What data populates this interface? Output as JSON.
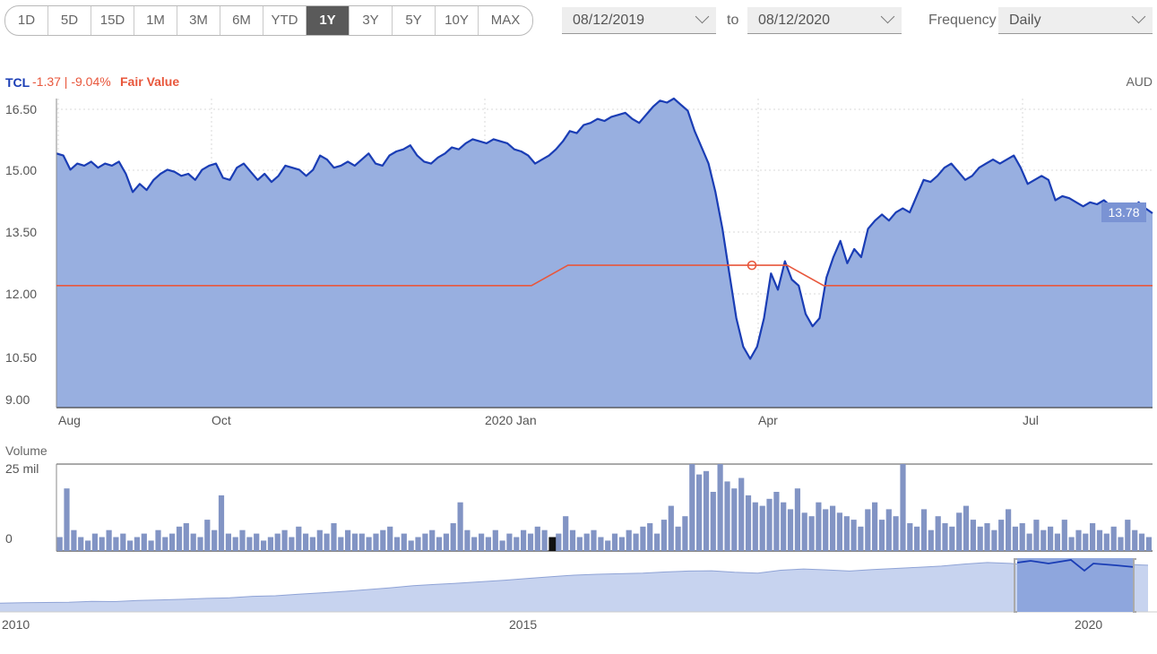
{
  "ranges": [
    "1D",
    "5D",
    "15D",
    "1M",
    "3M",
    "6M",
    "YTD",
    "1Y",
    "3Y",
    "5Y",
    "10Y",
    "MAX"
  ],
  "active_range": "1Y",
  "date_from": "08/12/2019",
  "to_label": "to",
  "date_to": "08/12/2020",
  "frequency_label": "Frequency",
  "frequency_value": "Daily",
  "colors": {
    "price_line": "#1a3db5",
    "price_fill": "#98afe0",
    "fair_value": "#e8573c",
    "volume_bar": "#8294c4",
    "volume_highlight": "#111111",
    "nav_fill": "#c7d3ef",
    "nav_window": "#8ea6dd"
  },
  "legend": {
    "ticker": "TCL",
    "change": "-1.37 | -9.04%",
    "fair_value_label": "Fair Value"
  },
  "currency": "AUD",
  "last_price_label": "13.78",
  "volume_title": "Volume",
  "chart_data": [
    {
      "type": "line",
      "y_ticks": [
        "16.50",
        "15.00",
        "13.50",
        "12.00",
        "10.50",
        "9.00"
      ],
      "ylim": [
        9.0,
        16.6
      ],
      "x_ticks": [
        "Aug",
        "Oct",
        "2020 Jan",
        "Apr",
        "Jul"
      ],
      "series": [
        {
          "name": "TCL",
          "values": [
            15.25,
            15.2,
            14.85,
            15.0,
            14.95,
            15.05,
            14.9,
            15.0,
            14.95,
            15.05,
            14.75,
            14.3,
            14.5,
            14.35,
            14.6,
            14.75,
            14.85,
            14.8,
            14.7,
            14.75,
            14.6,
            14.85,
            14.95,
            15.0,
            14.65,
            14.6,
            14.9,
            15.0,
            14.8,
            14.6,
            14.75,
            14.55,
            14.7,
            14.95,
            14.9,
            14.85,
            14.7,
            14.85,
            15.2,
            15.1,
            14.9,
            14.95,
            15.05,
            14.95,
            15.1,
            15.25,
            15.0,
            14.95,
            15.2,
            15.3,
            15.35,
            15.45,
            15.2,
            15.05,
            15.0,
            15.15,
            15.25,
            15.4,
            15.35,
            15.5,
            15.6,
            15.55,
            15.5,
            15.6,
            15.55,
            15.5,
            15.35,
            15.3,
            15.2,
            15.0,
            15.1,
            15.2,
            15.35,
            15.55,
            15.8,
            15.75,
            15.95,
            16.0,
            16.1,
            16.05,
            16.15,
            16.2,
            16.25,
            16.1,
            16.0,
            16.2,
            16.4,
            16.55,
            16.5,
            16.6,
            16.45,
            16.3,
            15.8,
            15.4,
            15.0,
            14.3,
            13.4,
            12.3,
            11.2,
            10.5,
            10.2,
            10.5,
            11.2,
            12.3,
            11.9,
            12.6,
            12.15,
            12.0,
            11.3,
            11.0,
            11.2,
            12.2,
            12.7,
            13.1,
            12.55,
            12.9,
            12.7,
            13.4,
            13.6,
            13.75,
            13.6,
            13.8,
            13.9,
            13.8,
            14.2,
            14.6,
            14.55,
            14.7,
            14.9,
            15.0,
            14.8,
            14.6,
            14.7,
            14.9,
            15.0,
            15.1,
            15.0,
            15.1,
            15.2,
            14.9,
            14.5,
            14.6,
            14.7,
            14.6,
            14.1,
            14.2,
            14.15,
            14.05,
            13.95,
            14.05,
            14.0,
            14.1,
            13.95,
            14.0,
            13.95,
            13.85,
            14.05,
            13.9,
            13.78
          ]
        },
        {
          "name": "Fair Value",
          "values": [
            12.0,
            12.0,
            12.0,
            12.0,
            12.0,
            12.0,
            12.0,
            12.0,
            12.0,
            12.0,
            12.0,
            12.0,
            12.0,
            12.0,
            12.5,
            12.5,
            12.5,
            12.5,
            12.5,
            12.5,
            12.5,
            12.0,
            12.0,
            12.0,
            12.0,
            12.0,
            12.0,
            12.0,
            12.0,
            12.0,
            12.0
          ]
        }
      ]
    },
    {
      "type": "bar",
      "title": "Volume",
      "y_ticks": [
        "25 mil",
        "0"
      ],
      "ylim": [
        0,
        25
      ],
      "values": [
        4,
        18,
        6,
        4,
        3,
        5,
        4,
        6,
        4,
        5,
        3,
        4,
        5,
        3,
        6,
        4,
        5,
        7,
        8,
        5,
        4,
        9,
        6,
        16,
        5,
        4,
        6,
        4,
        5,
        3,
        4,
        5,
        6,
        4,
        7,
        5,
        4,
        6,
        5,
        8,
        4,
        6,
        5,
        5,
        4,
        5,
        6,
        7,
        4,
        5,
        3,
        4,
        5,
        6,
        4,
        5,
        8,
        14,
        6,
        4,
        5,
        4,
        6,
        3,
        5,
        4,
        6,
        5,
        7,
        6,
        4,
        5,
        10,
        6,
        4,
        5,
        6,
        4,
        3,
        5,
        4,
        6,
        5,
        7,
        8,
        5,
        9,
        13,
        7,
        10,
        25,
        22,
        23,
        17,
        25,
        20,
        18,
        21,
        16,
        14,
        13,
        15,
        17,
        14,
        12,
        18,
        11,
        10,
        14,
        12,
        13,
        11,
        10,
        9,
        7,
        12,
        14,
        9,
        12,
        10,
        25,
        8,
        7,
        12,
        6,
        10,
        8,
        7,
        11,
        13,
        9,
        7,
        8,
        6,
        9,
        12,
        7,
        8,
        5,
        9,
        6,
        7,
        5,
        9,
        4,
        6,
        5,
        8,
        6,
        5,
        7,
        4,
        9,
        6,
        5,
        4
      ],
      "highlight_index": 70
    },
    {
      "type": "area",
      "title": "navigator",
      "x_ticks": [
        "2010",
        "2015",
        "2020"
      ],
      "values": [
        3.0,
        3.1,
        3.2,
        3.3,
        3.6,
        3.5,
        3.9,
        4.1,
        4.3,
        4.6,
        4.8,
        5.3,
        5.5,
        6.0,
        6.5,
        7.0,
        7.6,
        8.2,
        8.9,
        9.4,
        9.8,
        10.3,
        10.8,
        11.4,
        12.0,
        12.5,
        12.8,
        13.0,
        13.2,
        13.6,
        13.9,
        14.0,
        13.5,
        13.2,
        14.2,
        14.6,
        14.3,
        13.9,
        14.4,
        14.8,
        15.2,
        15.6,
        16.3,
        16.8,
        16.5,
        15.8,
        16.1,
        14.5,
        15.8,
        16.2,
        15.9
      ]
    }
  ]
}
